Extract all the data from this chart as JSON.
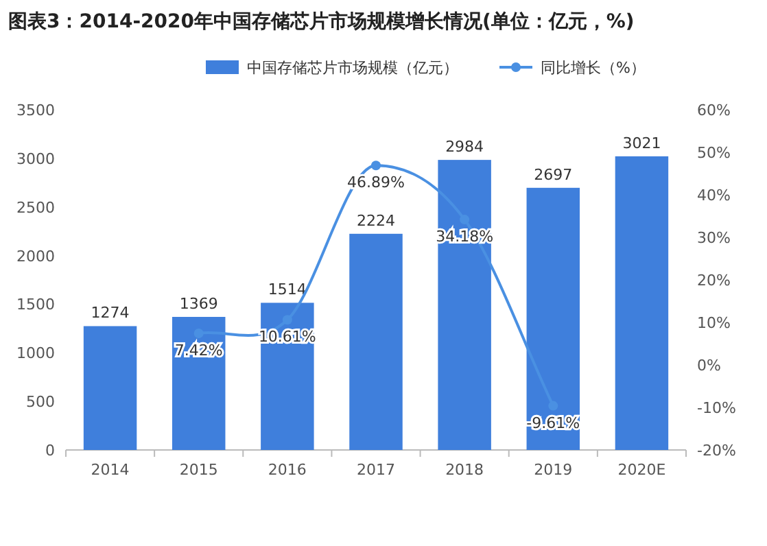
{
  "chart_data": {
    "type": "bar",
    "title": "图表3：2014-2020年中国存储芯片市场规模增长情况(单位：亿元，%)",
    "categories": [
      "2014",
      "2015",
      "2016",
      "2017",
      "2018",
      "2019",
      "2020E"
    ],
    "series": [
      {
        "name": "中国存储芯片市场规模（亿元）",
        "color": "#3f7fdc",
        "values": [
          1274,
          1369,
          1514,
          2224,
          2984,
          2697,
          3021
        ],
        "value_labels": [
          "1274",
          "1369",
          "1514",
          "2224",
          "2984",
          "2697",
          "3021"
        ]
      },
      {
        "name": "同比增长（%）",
        "type": "line",
        "axis": "y2",
        "color": "#4a90e2",
        "values": [
          null,
          7.42,
          10.61,
          46.89,
          34.18,
          -9.61,
          null
        ],
        "value_labels": [
          null,
          "7.42%",
          "10.61%",
          "46.89%",
          "34.18%",
          "-9.61%",
          null
        ]
      }
    ],
    "ylim": [
      0,
      3500
    ],
    "yticks": [
      0,
      500,
      1000,
      1500,
      2000,
      2500,
      3000,
      3500
    ],
    "y2lim": [
      -20,
      60
    ],
    "y2ticks": [
      {
        "value": -20,
        "label": "-20%"
      },
      {
        "value": -10,
        "label": "-10%"
      },
      {
        "value": 0,
        "label": "0%"
      },
      {
        "value": 10,
        "label": "10%"
      },
      {
        "value": 20,
        "label": "20%"
      },
      {
        "value": 30,
        "label": "30%"
      },
      {
        "value": 40,
        "label": "40%"
      },
      {
        "value": 50,
        "label": "50%"
      },
      {
        "value": 60,
        "label": "60%"
      }
    ],
    "legend": "top",
    "marker": "circle"
  }
}
